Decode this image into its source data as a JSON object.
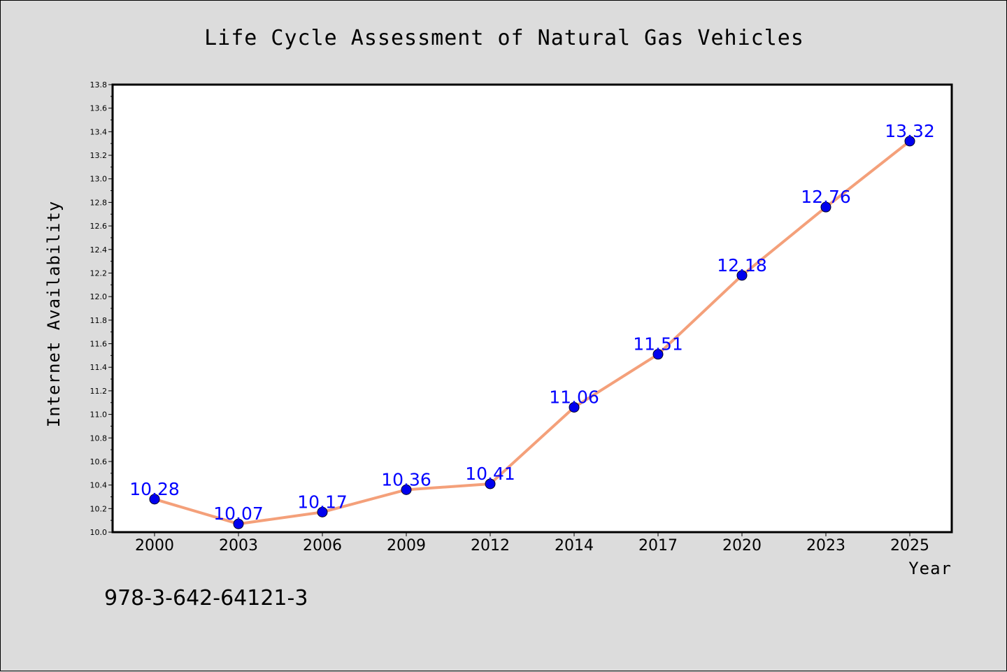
{
  "chart_data": {
    "type": "line",
    "title": "Life Cycle Assessment of Natural Gas Vehicles",
    "xlabel": "Year",
    "ylabel": "Internet Availability",
    "categories": [
      "2000",
      "2003",
      "2006",
      "2009",
      "2012",
      "2014",
      "2017",
      "2020",
      "2023",
      "2025"
    ],
    "series": [
      {
        "values": [
          10.28,
          10.07,
          10.17,
          10.36,
          10.41,
          11.06,
          11.51,
          12.18,
          12.76,
          13.32
        ],
        "data_labels": [
          "10.28",
          "10.07",
          "10.17",
          "10.36",
          "10.41",
          "11.06",
          "11.51",
          "12.18",
          "12.76",
          "13.32"
        ],
        "line_color": "#f4a07a",
        "marker_color": "#0000ee"
      }
    ],
    "ylim": [
      10.0,
      13.8
    ],
    "yticks": [
      "10.0",
      "10.2",
      "10.4",
      "10.6",
      "10.8",
      "11.0",
      "11.2",
      "11.4",
      "11.6",
      "11.8",
      "12.0",
      "12.2",
      "12.4",
      "12.6",
      "12.8",
      "13.0",
      "13.2",
      "13.4",
      "13.6",
      "13.8"
    ],
    "grid": false,
    "legend": "none"
  },
  "footnote": "978-3-642-64121-3",
  "colors": {
    "background": "#dcdcdc",
    "plot_background": "#ffffff",
    "label_color": "#0000ff"
  }
}
